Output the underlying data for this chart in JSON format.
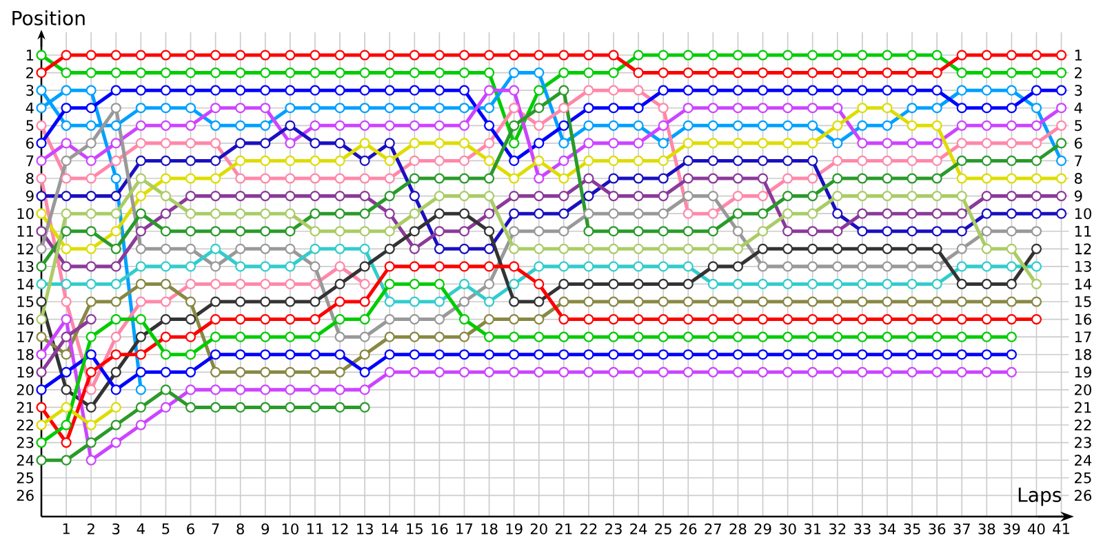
{
  "chart_data": {
    "type": "line",
    "xlabel": "Laps",
    "ylabel": "Position",
    "x": [
      0,
      1,
      2,
      3,
      4,
      5,
      6,
      7,
      8,
      9,
      10,
      11,
      12,
      13,
      14,
      15,
      16,
      17,
      18,
      19,
      20,
      21,
      22,
      23,
      24,
      25,
      26,
      27,
      28,
      29,
      30,
      31,
      32,
      33,
      34,
      35,
      36,
      37,
      38,
      39,
      40,
      41
    ],
    "xlim": [
      0,
      41.3
    ],
    "xticks": [
      1,
      2,
      3,
      4,
      5,
      6,
      7,
      8,
      9,
      10,
      11,
      12,
      13,
      14,
      15,
      16,
      17,
      18,
      19,
      20,
      21,
      22,
      23,
      24,
      25,
      26,
      27,
      28,
      29,
      30,
      31,
      32,
      33,
      34,
      35,
      36,
      37,
      38,
      39,
      40,
      41
    ],
    "ylim": [
      27.2,
      -0.3
    ],
    "yticks": [
      1,
      2,
      3,
      4,
      5,
      6,
      7,
      8,
      9,
      10,
      11,
      12,
      13,
      14,
      15,
      16,
      17,
      18,
      19,
      20,
      21,
      22,
      23,
      24,
      25,
      26
    ],
    "y2lim": [
      27.2,
      -0.3
    ],
    "y2ticks": [
      1,
      2,
      3,
      4,
      5,
      6,
      7,
      8,
      9,
      10,
      11,
      12,
      13,
      14,
      15,
      16,
      17,
      18,
      19,
      20,
      21,
      22,
      23,
      24,
      25,
      26
    ],
    "grid": true,
    "marker": "circle",
    "line_style": "solid",
    "series": [
      {
        "color": "#00cc00",
        "values": [
          1,
          2,
          2,
          2,
          2,
          2,
          2,
          2,
          2,
          2,
          2,
          2,
          2,
          2,
          2,
          2,
          2,
          2,
          2,
          6,
          3,
          2,
          2,
          2,
          1,
          1,
          1,
          1,
          1,
          1,
          1,
          1,
          1,
          1,
          1,
          1,
          1,
          2,
          2,
          2,
          2,
          2
        ]
      },
      {
        "color": "#ff0000",
        "values": [
          2,
          1,
          1,
          1,
          1,
          1,
          1,
          1,
          1,
          1,
          1,
          1,
          1,
          1,
          1,
          1,
          1,
          1,
          1,
          1,
          1,
          1,
          1,
          1,
          2,
          2,
          2,
          2,
          2,
          2,
          2,
          2,
          2,
          2,
          2,
          2,
          2,
          1,
          1,
          1,
          1,
          1
        ]
      },
      {
        "color": "#00a0ff",
        "values": [
          3,
          5,
          5,
          5,
          4,
          4,
          4,
          5,
          5,
          5,
          4,
          4,
          4,
          4,
          4,
          4,
          4,
          4,
          4,
          2,
          2,
          6,
          5,
          5,
          5,
          6,
          5,
          5,
          5,
          5,
          5,
          5,
          6,
          5,
          5,
          4,
          4,
          3,
          3,
          3,
          4,
          7
        ]
      },
      {
        "color": "#00a0ff",
        "values": [
          4,
          3,
          3,
          8,
          20,
          null,
          null,
          null,
          null,
          null,
          null,
          null,
          null,
          null,
          null,
          null,
          null,
          null,
          null,
          null,
          null,
          null,
          null,
          null,
          null,
          null,
          null,
          null,
          null,
          null,
          null,
          null,
          null,
          null,
          null,
          null,
          null,
          null,
          null,
          null,
          null,
          null
        ]
      },
      {
        "color": "#ff88aa",
        "values": [
          5,
          8,
          8,
          7,
          6,
          6,
          6,
          6,
          8,
          8,
          8,
          8,
          8,
          8,
          8,
          7,
          7,
          7,
          6,
          4,
          5,
          4,
          3,
          3,
          3,
          4,
          10,
          10,
          9,
          9,
          8,
          8,
          7,
          7,
          7,
          7,
          7,
          6,
          6,
          6,
          6,
          5
        ]
      },
      {
        "color": "#0000ff",
        "values": [
          6,
          4,
          4,
          3,
          3,
          3,
          3,
          3,
          3,
          3,
          3,
          3,
          3,
          3,
          3,
          3,
          3,
          3,
          5,
          7,
          6,
          5,
          4,
          4,
          4,
          3,
          3,
          3,
          3,
          3,
          3,
          3,
          3,
          3,
          3,
          3,
          3,
          4,
          4,
          4,
          3,
          3
        ]
      },
      {
        "color": "#cc44ff",
        "values": [
          7,
          6,
          7,
          6,
          5,
          5,
          5,
          4,
          4,
          4,
          6,
          5,
          5,
          5,
          5,
          5,
          5,
          5,
          3,
          3,
          8,
          7,
          6,
          6,
          6,
          5,
          4,
          4,
          4,
          4,
          4,
          4,
          4,
          6,
          6,
          6,
          6,
          5,
          5,
          5,
          5,
          4
        ]
      },
      {
        "color": "#ff88aa",
        "values": [
          8,
          15,
          20,
          17,
          15,
          15,
          14,
          14,
          14,
          14,
          14,
          14,
          13,
          14,
          null,
          null,
          null,
          null,
          null,
          null,
          null,
          null,
          null,
          null,
          null,
          null,
          null,
          null,
          null,
          null,
          null,
          null,
          null,
          null,
          null,
          null,
          null,
          null,
          null,
          null,
          null,
          null
        ]
      },
      {
        "color": "#1a10c0",
        "values": [
          9,
          9,
          9,
          9,
          7,
          7,
          7,
          7,
          6,
          6,
          5,
          6,
          6,
          7,
          6,
          9,
          12,
          12,
          12,
          10,
          10,
          10,
          9,
          8,
          8,
          8,
          7,
          7,
          7,
          7,
          7,
          7,
          10,
          11,
          11,
          11,
          11,
          11,
          10,
          10,
          10,
          10
        ]
      },
      {
        "color": "#dddd00",
        "values": [
          10,
          12,
          12,
          11,
          9,
          8,
          8,
          8,
          7,
          7,
          7,
          7,
          7,
          6,
          7,
          6,
          6,
          6,
          7,
          8,
          7,
          8,
          7,
          7,
          7,
          7,
          6,
          6,
          6,
          6,
          6,
          6,
          5,
          4,
          4,
          5,
          5,
          8,
          8,
          8,
          8,
          8
        ]
      },
      {
        "color": "#8b3a9a",
        "values": [
          11,
          13,
          13,
          13,
          11,
          10,
          9,
          9,
          9,
          9,
          9,
          9,
          9,
          9,
          10,
          12,
          11,
          11,
          10,
          9,
          9,
          9,
          8,
          9,
          9,
          9,
          8,
          8,
          8,
          8,
          11,
          11,
          11,
          10,
          10,
          10,
          10,
          10,
          9,
          9,
          9,
          9
        ]
      },
      {
        "color": "#999999",
        "values": [
          12,
          7,
          6,
          4,
          12,
          12,
          12,
          13,
          12,
          12,
          12,
          13,
          17,
          17,
          16,
          16,
          16,
          15,
          14,
          11,
          11,
          11,
          10,
          10,
          10,
          10,
          9,
          9,
          11,
          13,
          13,
          13,
          13,
          13,
          13,
          13,
          13,
          12,
          11,
          11,
          11,
          null
        ]
      },
      {
        "color": "#2a9a2a",
        "values": [
          13,
          11,
          11,
          12,
          10,
          11,
          11,
          11,
          11,
          11,
          11,
          10,
          10,
          10,
          9,
          8,
          8,
          8,
          8,
          5,
          4,
          3,
          11,
          11,
          11,
          11,
          11,
          11,
          10,
          10,
          9,
          9,
          8,
          8,
          8,
          8,
          8,
          7,
          7,
          7,
          7,
          6
        ]
      },
      {
        "color": "#33cccc",
        "values": [
          14,
          14,
          14,
          14,
          13,
          13,
          13,
          12,
          13,
          13,
          13,
          12,
          12,
          12,
          15,
          15,
          15,
          14,
          15,
          14,
          13,
          13,
          13,
          13,
          13,
          13,
          13,
          14,
          14,
          14,
          14,
          14,
          14,
          14,
          14,
          14,
          14,
          13,
          13,
          13,
          13,
          null
        ]
      },
      {
        "color": "#333333",
        "values": [
          15,
          20,
          21,
          19,
          17,
          16,
          16,
          15,
          15,
          15,
          15,
          15,
          14,
          13,
          12,
          11,
          10,
          10,
          11,
          15,
          15,
          14,
          14,
          14,
          14,
          14,
          14,
          13,
          13,
          12,
          12,
          12,
          12,
          12,
          12,
          12,
          12,
          14,
          14,
          14,
          12,
          null
        ]
      },
      {
        "color": "#aacc66",
        "values": [
          16,
          10,
          10,
          10,
          8,
          9,
          10,
          10,
          10,
          10,
          10,
          11,
          11,
          11,
          11,
          10,
          9,
          9,
          9,
          12,
          12,
          12,
          12,
          12,
          12,
          12,
          12,
          12,
          12,
          11,
          10,
          10,
          9,
          9,
          9,
          9,
          9,
          9,
          12,
          12,
          14,
          null
        ]
      },
      {
        "color": "#888844",
        "values": [
          17,
          18,
          15,
          15,
          14,
          14,
          15,
          19,
          19,
          19,
          19,
          19,
          19,
          18,
          17,
          17,
          17,
          17,
          16,
          16,
          16,
          15,
          15,
          15,
          15,
          15,
          15,
          15,
          15,
          15,
          15,
          15,
          15,
          15,
          15,
          15,
          15,
          15,
          15,
          15,
          15,
          null
        ]
      },
      {
        "color": "#cc44ff",
        "values": [
          18,
          16,
          24,
          23,
          22,
          21,
          20,
          20,
          20,
          20,
          20,
          20,
          20,
          20,
          19,
          19,
          19,
          19,
          19,
          19,
          19,
          19,
          19,
          19,
          19,
          19,
          19,
          19,
          19,
          19,
          19,
          19,
          19,
          19,
          19,
          19,
          19,
          19,
          19,
          19,
          null,
          null
        ]
      },
      {
        "color": "#8b3a9a",
        "values": [
          19,
          17,
          16,
          null,
          null,
          null,
          null,
          null,
          null,
          null,
          null,
          null,
          null,
          null,
          null,
          null,
          null,
          null,
          null,
          null,
          null,
          null,
          null,
          null,
          null,
          null,
          null,
          null,
          null,
          null,
          null,
          null,
          null,
          null,
          null,
          null,
          null,
          null,
          null,
          null,
          null,
          null
        ]
      },
      {
        "color": "#0000ff",
        "values": [
          20,
          19,
          18,
          20,
          19,
          19,
          19,
          18,
          18,
          18,
          18,
          18,
          18,
          19,
          18,
          18,
          18,
          18,
          18,
          18,
          18,
          18,
          18,
          18,
          18,
          18,
          18,
          18,
          18,
          18,
          18,
          18,
          18,
          18,
          18,
          18,
          18,
          18,
          18,
          18,
          null,
          null
        ]
      },
      {
        "color": "#ff0000",
        "values": [
          21,
          23,
          19,
          18,
          18,
          17,
          17,
          16,
          16,
          16,
          16,
          16,
          15,
          15,
          13,
          13,
          13,
          13,
          13,
          13,
          14,
          16,
          16,
          16,
          16,
          16,
          16,
          16,
          16,
          16,
          16,
          16,
          16,
          16,
          16,
          16,
          16,
          16,
          16,
          16,
          16,
          null
        ]
      },
      {
        "color": "#dddd00",
        "values": [
          22,
          21,
          22,
          21,
          null,
          null,
          null,
          null,
          null,
          null,
          null,
          null,
          null,
          null,
          null,
          null,
          null,
          null,
          null,
          null,
          null,
          null,
          null,
          null,
          null,
          null,
          null,
          null,
          null,
          null,
          null,
          null,
          null,
          null,
          null,
          null,
          null,
          null,
          null,
          null,
          null,
          null
        ]
      },
      {
        "color": "#00cc00",
        "values": [
          23,
          22,
          17,
          16,
          16,
          18,
          18,
          17,
          17,
          17,
          17,
          17,
          16,
          16,
          14,
          14,
          14,
          16,
          17,
          17,
          17,
          17,
          17,
          17,
          17,
          17,
          17,
          17,
          17,
          17,
          17,
          17,
          17,
          17,
          17,
          17,
          17,
          17,
          17,
          17,
          null,
          null
        ]
      },
      {
        "color": "#2a9a2a",
        "values": [
          24,
          24,
          23,
          22,
          21,
          20,
          21,
          21,
          21,
          21,
          21,
          21,
          21,
          21,
          null,
          null,
          null,
          null,
          null,
          null,
          null,
          null,
          null,
          null,
          null,
          null,
          null,
          null,
          null,
          null,
          null,
          null,
          null,
          null,
          null,
          null,
          null,
          null,
          null,
          null,
          null,
          null
        ]
      }
    ]
  }
}
